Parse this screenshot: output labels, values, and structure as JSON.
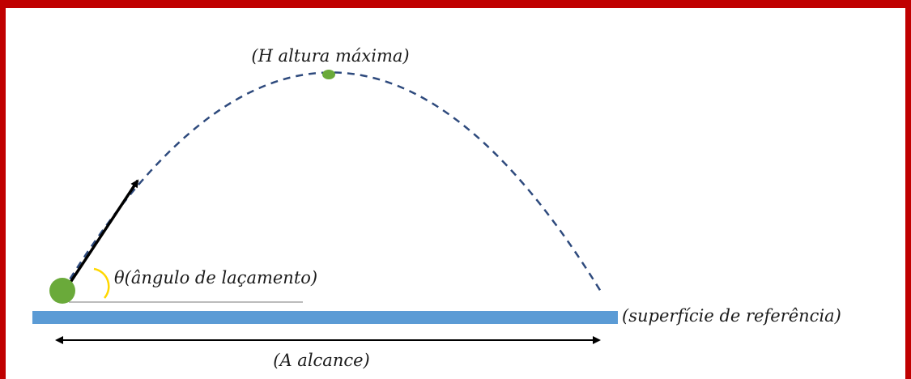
{
  "colors": {
    "frame": "#c00000",
    "background": "#ffffff",
    "trajectory": "#2e4a7d",
    "projectile": "#6aaa3a",
    "apex_marker": "#6aaa3a",
    "ground": "#5b9bd5",
    "angle_arc": "#ffd700",
    "arrows": "#000000",
    "reference_line": "#a6a6a6"
  },
  "labels": {
    "max_height": "(H altura máxima)",
    "angle_symbol": "θ",
    "angle": "(ângulo de laçamento)",
    "surface": "(superfície de referência)",
    "range": "(A alcance)"
  }
}
